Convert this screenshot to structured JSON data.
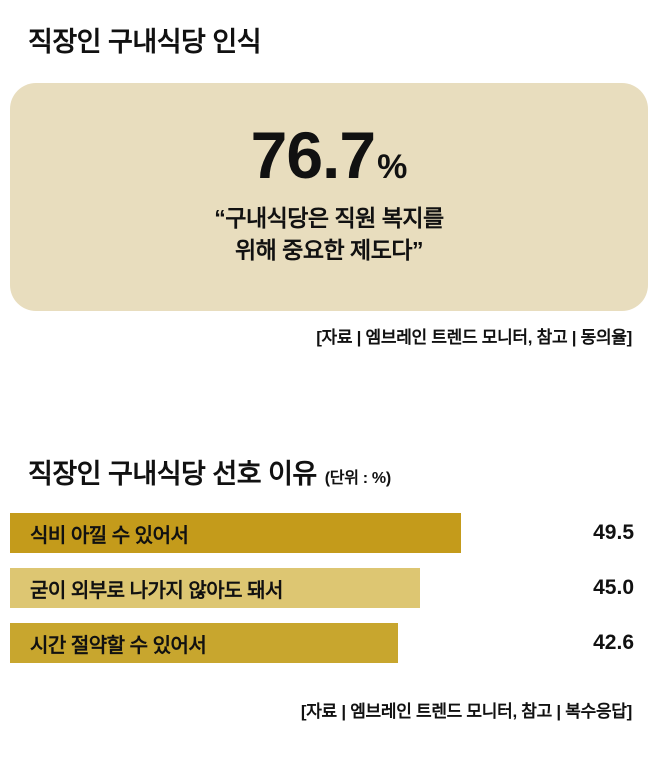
{
  "colors": {
    "page_bg": "#ffffff",
    "stat_box_bg": "#e8ddbe",
    "text": "#111111"
  },
  "section1": {
    "title": "직장인 구내식당 인식",
    "stat_value": "76.7",
    "stat_unit": "%",
    "quote_lines": {
      "0": "“구내식당은 직원 복지를",
      "1": "위해 중요한 제도다”"
    },
    "source": "[자료 | 엠브레인 트렌드 모니터, 참고 | 동의율]"
  },
  "section2": {
    "title": "직장인 구내식당 선호 이유",
    "unit_label": "(단위 : %)",
    "source": "[자료 | 엠브레인 트렌드 모니터, 참고 | 복수응답]"
  },
  "chart_data": {
    "type": "bar",
    "orientation": "horizontal",
    "title": "직장인 구내식당 선호 이유",
    "unit": "%",
    "categories": [
      "식비 아낄 수 있어서",
      "굳이 외부로 나가지 않아도 돼서",
      "시간 절약할 수 있어서"
    ],
    "values": [
      49.5,
      45.0,
      42.6
    ],
    "value_labels": [
      "49.5",
      "45.0",
      "42.6"
    ],
    "bar_colors": [
      "#c49b1b",
      "#ddc672",
      "#c8a62e"
    ],
    "xlim": [
      0,
      70
    ],
    "grid": false,
    "legend": false
  }
}
